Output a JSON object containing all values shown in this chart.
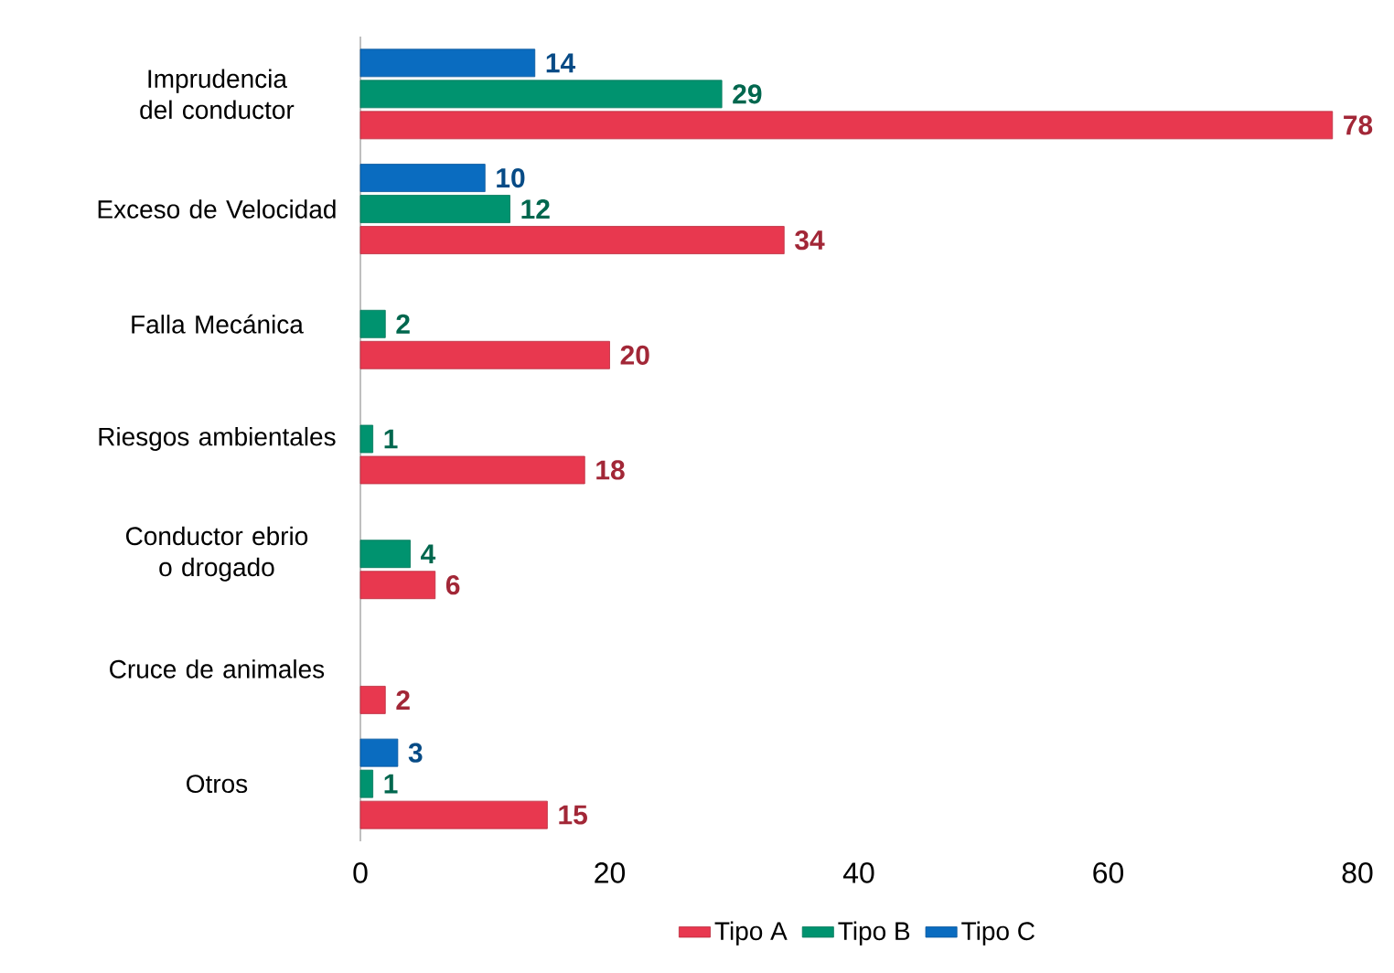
{
  "chart_data": {
    "type": "bar",
    "orientation": "horizontal",
    "categories": [
      "Imprudencia del conductor",
      "Exceso de Velocidad",
      "Falla Mecánica",
      "Riesgos ambientales",
      "Conductor ebrio o drogado",
      "Cruce de animales",
      "Otros"
    ],
    "series": [
      {
        "name": "Tipo A",
        "color": "#e8384f",
        "values": [
          78,
          34,
          20,
          18,
          6,
          2,
          15
        ]
      },
      {
        "name": "Tipo B",
        "color": "#00936f",
        "values": [
          29,
          12,
          2,
          1,
          4,
          null,
          1
        ]
      },
      {
        "name": "Tipo C",
        "color": "#0a6cc0",
        "values": [
          14,
          10,
          null,
          null,
          null,
          null,
          3
        ]
      }
    ],
    "xlim": [
      0,
      80
    ],
    "xticks": [
      0,
      20,
      40,
      60,
      80
    ],
    "data_labels": true,
    "legend": "bottom",
    "grid": false
  }
}
